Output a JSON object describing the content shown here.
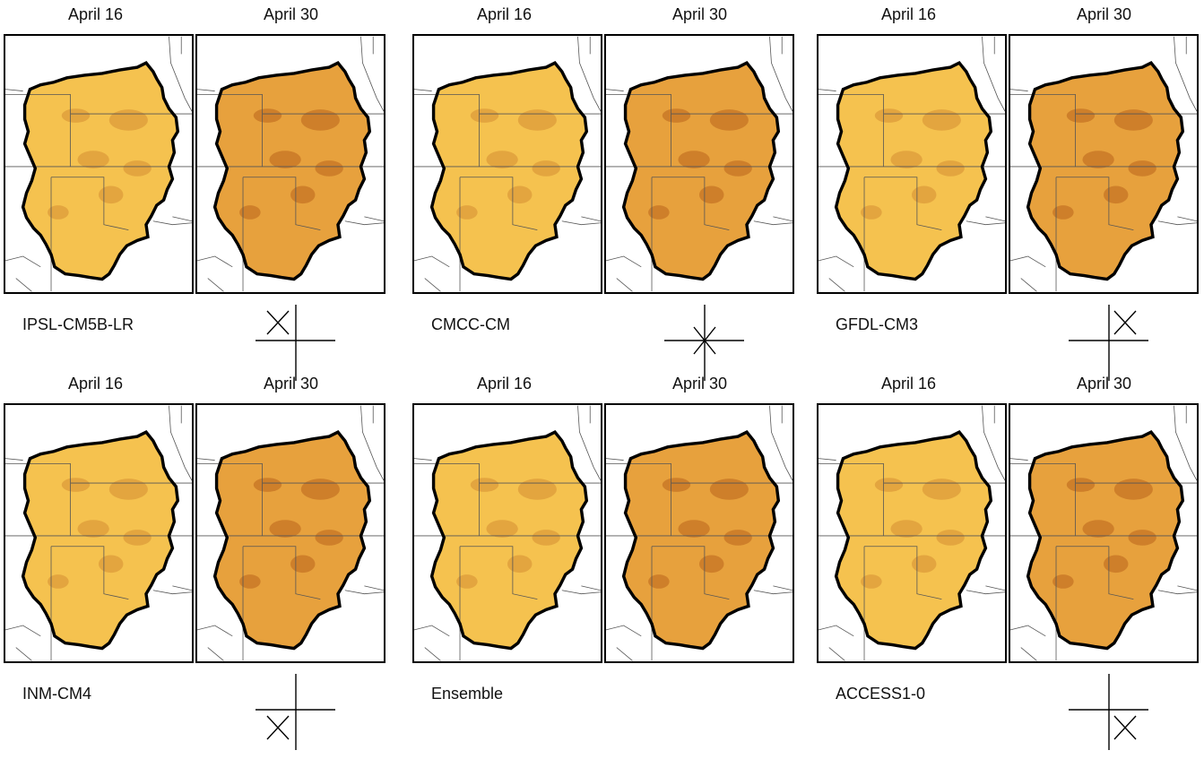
{
  "dates": [
    "April 16",
    "April 30"
  ],
  "colors": {
    "fill_early": "#f5c24f",
    "fill_late": "#e7a13d",
    "dark_patch": "#b9651b",
    "outline": "#000000",
    "state_lines": "#555555"
  },
  "models": [
    {
      "name": "IPSL-CM5B-LR",
      "glyph": "x-upper-left"
    },
    {
      "name": "CMCC-CM",
      "glyph": "star-center"
    },
    {
      "name": "GFDL-CM3",
      "glyph": "x-upper-right"
    },
    {
      "name": "INM-CM4",
      "glyph": "x-lower-left"
    },
    {
      "name": "Ensemble",
      "glyph": "none"
    },
    {
      "name": "ACCESS1-0",
      "glyph": "x-lower-right"
    }
  ]
}
